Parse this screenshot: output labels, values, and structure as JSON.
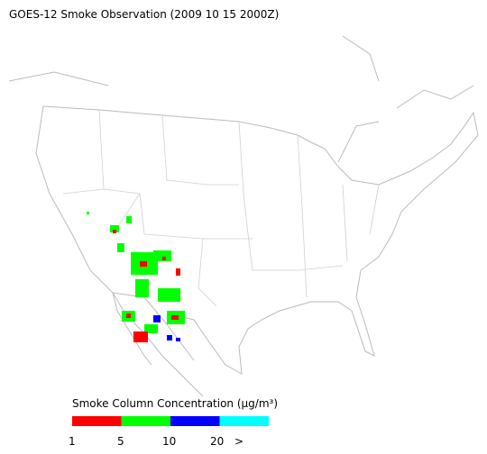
{
  "title": "GOES-12 Smoke Observation (2009 10 15  2000Z)",
  "legend": {
    "title": "Smoke Column Concentration (μg/m³)",
    "colors": [
      "#ff0000",
      "#00ff00",
      "#0000ff",
      "#00ffff"
    ],
    "ticks": [
      "1",
      "5",
      "10",
      "20",
      ">"
    ]
  }
}
